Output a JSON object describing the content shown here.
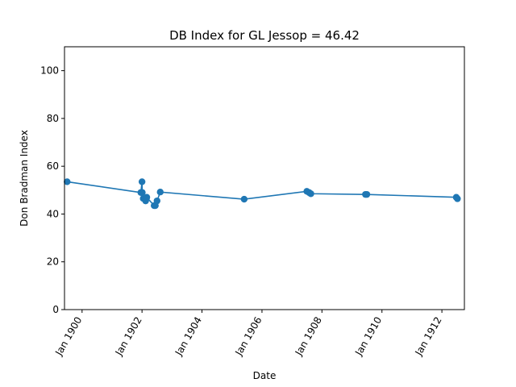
{
  "chart_data": {
    "type": "line",
    "title": "DB Index for GL Jessop = 46.42",
    "xlabel": "Date",
    "ylabel": "Don Bradman Index",
    "ylim": [
      0,
      110
    ],
    "xlim": [
      "1899-06-01",
      "1912-10-01"
    ],
    "yticks": [
      0,
      20,
      40,
      60,
      80,
      100
    ],
    "xticks": [
      {
        "date": "1900-01-01",
        "label": "Jan 1900"
      },
      {
        "date": "1902-01-01",
        "label": "Jan 1902"
      },
      {
        "date": "1904-01-01",
        "label": "Jan 1904"
      },
      {
        "date": "1906-01-01",
        "label": "Jan 1906"
      },
      {
        "date": "1908-01-01",
        "label": "Jan 1908"
      },
      {
        "date": "1910-01-01",
        "label": "Jan 1910"
      },
      {
        "date": "1912-01-01",
        "label": "Jan 1912"
      }
    ],
    "grid": false,
    "color": "#1f77b4",
    "series": [
      {
        "x": [
          "1899-07-03",
          "1901-12-18",
          "1902-01-01",
          "1902-01-04",
          "1902-01-16",
          "1902-02-14",
          "1902-02-28",
          "1902-05-29",
          "1902-06-12",
          "1902-07-03",
          "1902-08-11",
          "1905-05-29",
          "1907-07-01",
          "1907-07-29",
          "1907-08-19",
          "1909-06-14",
          "1909-07-01",
          "1912-06-24",
          "1912-07-08"
        ],
        "y": [
          53.5,
          49.0,
          53.5,
          49.0,
          46.5,
          45.5,
          47.0,
          43.5,
          43.5,
          45.5,
          49.2,
          46.2,
          49.5,
          49.0,
          48.5,
          48.2,
          48.2,
          47.0,
          46.4
        ]
      }
    ]
  }
}
